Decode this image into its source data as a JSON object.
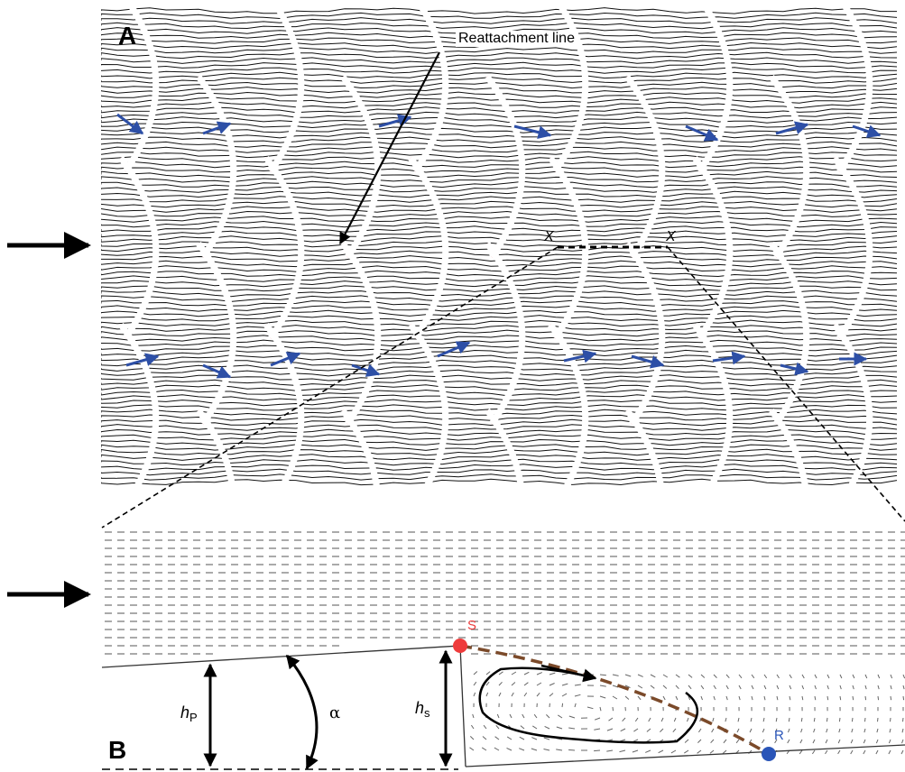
{
  "panel_a": {
    "label": "A",
    "callout": "Reattachment line",
    "section_marks": [
      "X",
      "X"
    ]
  },
  "panel_b": {
    "label": "B",
    "point_s": "S",
    "point_r": "R",
    "hp_symbol": "h",
    "hp_subscript": "P",
    "hs_symbol": "h",
    "hs_subscript": "s",
    "angle_symbol": "α"
  },
  "colors": {
    "scale_edge": "#e8202a",
    "flow_arrow": "#2d4fa6",
    "separation_point": "#ee3b3b",
    "reattachment_point": "#2a55b8",
    "separation_streamline": "#7b4a2a",
    "streak_lines": "#111111"
  }
}
